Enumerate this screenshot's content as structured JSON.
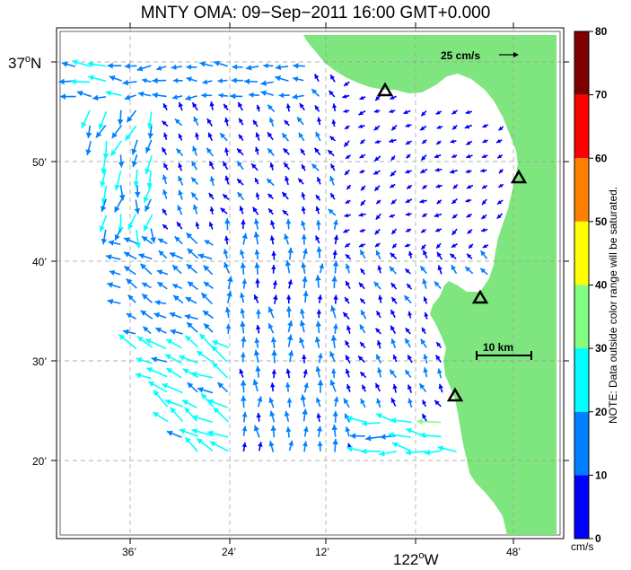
{
  "title": "MNTY OMA: 09−Sep−2011 16:00 GMT+0.000",
  "map": {
    "lat_labels": [
      {
        "text": "37",
        "sup": "o",
        "suffix": "N"
      },
      {
        "text": "50’"
      },
      {
        "text": "40’"
      },
      {
        "text": "30’"
      },
      {
        "text": "20’"
      }
    ],
    "lon_labels": [
      {
        "text": "36’"
      },
      {
        "text": "24’"
      },
      {
        "text": "12’"
      },
      {
        "text": "122",
        "sup": "o",
        "suffix": "W"
      },
      {
        "text": "48’"
      }
    ],
    "reference_vector_label": "25 cm/s",
    "scale_bar_label": "10 km",
    "land_color": "#7fe57f",
    "stations": [
      "station-1",
      "station-2",
      "station-3",
      "station-4"
    ]
  },
  "colorbar": {
    "ticks": [
      "80",
      "70",
      "60",
      "50",
      "40",
      "30",
      "20",
      "10",
      "0"
    ],
    "unit": "cm/s",
    "bands": [
      {
        "range": "70-80",
        "color": "#7f0000"
      },
      {
        "range": "60-70",
        "color": "#ff0000"
      },
      {
        "range": "50-60",
        "color": "#ff8000"
      },
      {
        "range": "40-50",
        "color": "#ffff00"
      },
      {
        "range": "30-40",
        "color": "#80ff80"
      },
      {
        "range": "20-30",
        "color": "#00ffff"
      },
      {
        "range": "10-20",
        "color": "#0080ff"
      },
      {
        "range": "0-10",
        "color": "#0000ff"
      }
    ],
    "note": "NOTE: Data outside color range will be saturated."
  }
}
